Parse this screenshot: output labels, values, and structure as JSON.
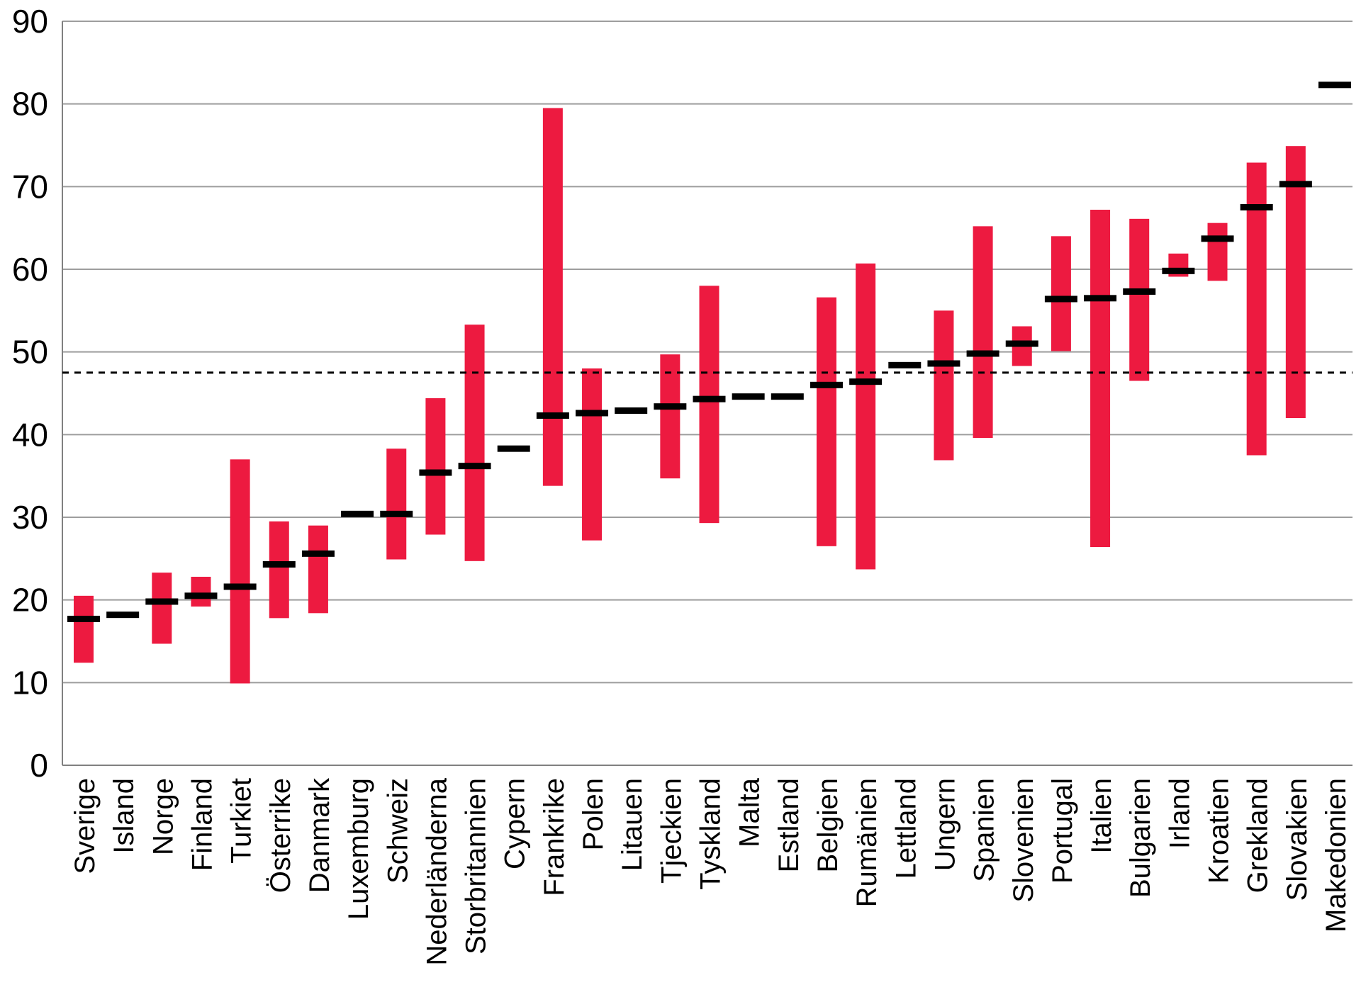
{
  "chart_data": {
    "type": "bar",
    "subtype": "floating-range-bars-with-median-dash",
    "title": "",
    "xlabel": "",
    "ylabel": "",
    "ylim": [
      0,
      90
    ],
    "yticks": [
      0,
      10,
      20,
      30,
      40,
      50,
      60,
      70,
      80,
      90
    ],
    "grid": true,
    "legend": "none",
    "reference_line_y": 47.5,
    "categories": [
      "Sverige",
      "Island",
      "Norge",
      "Finland",
      "Turkiet",
      "Österrike",
      "Danmark",
      "Luxemburg",
      "Schweiz",
      "Nederländerna",
      "Storbritannien",
      "Cypern",
      "Frankrike",
      "Polen",
      "Litauen",
      "Tjeckien",
      "Tyskland",
      "Malta",
      "Estland",
      "Belgien",
      "Rumänien",
      "Lettland",
      "Ungern",
      "Spanien",
      "Slovenien",
      "Portugal",
      "Italien",
      "Bulgarien",
      "Irland",
      "Kroatien",
      "Grekland",
      "Slovakien",
      "Makedonien"
    ],
    "series": [
      {
        "name": "range_low",
        "values": [
          12.4,
          null,
          14.7,
          19.2,
          9.9,
          17.8,
          18.4,
          null,
          24.9,
          27.9,
          24.7,
          null,
          33.8,
          27.2,
          null,
          34.7,
          29.3,
          null,
          null,
          26.5,
          23.7,
          null,
          36.9,
          39.6,
          48.3,
          50.1,
          26.4,
          46.5,
          59.1,
          58.6,
          37.5,
          42.0,
          null
        ]
      },
      {
        "name": "range_high",
        "values": [
          20.5,
          null,
          23.3,
          22.8,
          37.0,
          29.5,
          29.0,
          null,
          38.3,
          44.4,
          53.3,
          null,
          79.5,
          48.0,
          null,
          49.7,
          58.0,
          null,
          null,
          56.6,
          60.7,
          null,
          55.0,
          65.2,
          53.1,
          64.0,
          67.2,
          66.1,
          61.9,
          65.6,
          72.9,
          74.9,
          null
        ]
      },
      {
        "name": "median",
        "values": [
          17.7,
          18.2,
          19.8,
          20.5,
          21.6,
          24.3,
          25.6,
          30.4,
          30.4,
          35.4,
          36.2,
          38.3,
          42.3,
          42.6,
          42.9,
          43.4,
          44.3,
          44.6,
          44.6,
          46.0,
          46.4,
          48.4,
          48.6,
          49.8,
          51.0,
          56.4,
          56.5,
          57.3,
          59.8,
          63.7,
          67.5,
          70.3,
          82.3
        ]
      }
    ],
    "colors": {
      "bar": "#ED1A40",
      "median_dash": "#000000",
      "gridline": "#9D9D9D",
      "axis_line": "#808080",
      "reference_line": "#000000",
      "tick_label": "#000000",
      "background": "#FFFFFF"
    }
  }
}
